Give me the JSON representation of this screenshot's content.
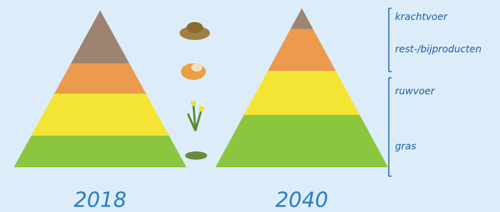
{
  "pyramids": [
    {
      "year": "2018"
    },
    {
      "year": "2040"
    }
  ],
  "legend": {
    "labels": [
      "krachtvoer",
      "rest-/bijproducten",
      "ruwvoer",
      "gras"
    ]
  }
}
